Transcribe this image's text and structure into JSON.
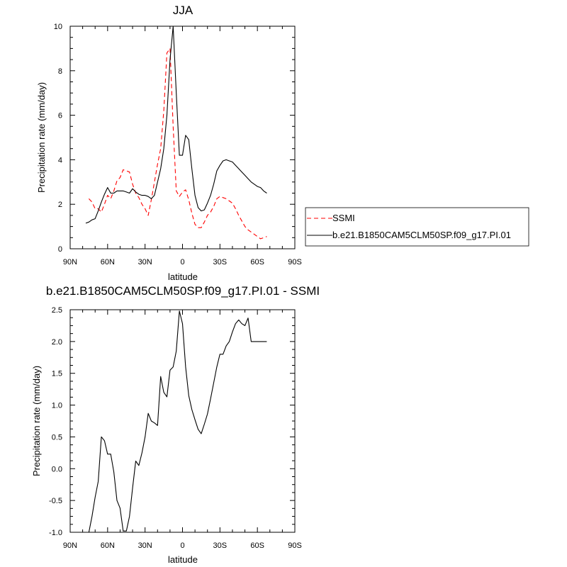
{
  "chart_data": [
    {
      "type": "line",
      "title": "JJA",
      "xlabel": "latitude",
      "ylabel": "Precipitation rate (mm/day)",
      "xlim": [
        90,
        -90
      ],
      "ylim": [
        0,
        10
      ],
      "x_ticks": [
        90,
        60,
        30,
        0,
        -30,
        -60,
        -90
      ],
      "x_tick_labels": [
        "90N",
        "60N",
        "30N",
        "0",
        "30S",
        "60S",
        "90S"
      ],
      "y_ticks": [
        0,
        2,
        4,
        6,
        8,
        10
      ],
      "y_tick_labels": [
        "0",
        "2",
        "4",
        "6",
        "8",
        "10"
      ],
      "grid": false,
      "legend_position": "right",
      "series": [
        {
          "name": "SSMI",
          "color": "#ff0000",
          "dash": "dashed",
          "x": [
            75,
            72.5,
            70,
            67.5,
            65,
            62.5,
            60,
            57.5,
            55,
            52.5,
            50,
            47.5,
            45,
            42.5,
            40,
            37.5,
            35,
            32.5,
            30,
            27.5,
            25,
            22.5,
            20,
            17.5,
            15,
            12.5,
            10,
            7.5,
            5,
            2.5,
            0,
            -2.5,
            -5,
            -7.5,
            -10,
            -12.5,
            -15,
            -17.5,
            -20,
            -22.5,
            -25,
            -27.5,
            -30,
            -32.5,
            -35,
            -37.5,
            -40,
            -42.5,
            -45,
            -47.5,
            -50,
            -52.5,
            -55,
            -57.5,
            -60,
            -62.5,
            -65,
            -67.5
          ],
          "y": [
            2.25,
            2.1,
            1.8,
            1.8,
            1.65,
            2.0,
            2.4,
            2.25,
            2.6,
            3.05,
            3.2,
            3.55,
            3.5,
            3.45,
            2.9,
            2.5,
            2.3,
            2.0,
            1.8,
            1.5,
            2.2,
            3.0,
            3.8,
            4.5,
            6.2,
            8.8,
            9.0,
            5.5,
            2.6,
            2.35,
            2.55,
            2.65,
            2.2,
            1.6,
            1.1,
            0.95,
            0.95,
            1.2,
            1.5,
            1.65,
            1.9,
            2.25,
            2.35,
            2.3,
            2.25,
            2.15,
            2.05,
            1.8,
            1.5,
            1.25,
            1.0,
            0.85,
            0.75,
            0.65,
            0.55,
            0.45,
            0.5,
            0.55
          ]
        },
        {
          "name": "b.e21.B1850CAM5CLM50SP.f09_g17.PI.01",
          "color": "#000000",
          "dash": "solid",
          "x": [
            77.5,
            75,
            72.5,
            70,
            67.5,
            65,
            62.5,
            60,
            57.5,
            55,
            52.5,
            50,
            47.5,
            45,
            42.5,
            40,
            37.5,
            35,
            32.5,
            30,
            27.5,
            25,
            22.5,
            20,
            17.5,
            15,
            12.5,
            10,
            7.5,
            5,
            2.5,
            0,
            -2.5,
            -5,
            -7.5,
            -10,
            -12.5,
            -15,
            -17.5,
            -20,
            -22.5,
            -25,
            -27.5,
            -30,
            -32.5,
            -35,
            -37.5,
            -40,
            -42.5,
            -45,
            -47.5,
            -50,
            -52.5,
            -55,
            -57.5,
            -60,
            -62.5,
            -65,
            -67.5
          ],
          "y": [
            1.15,
            1.2,
            1.3,
            1.35,
            1.7,
            2.1,
            2.45,
            2.75,
            2.5,
            2.5,
            2.6,
            2.6,
            2.6,
            2.55,
            2.5,
            2.7,
            2.55,
            2.45,
            2.4,
            2.4,
            2.35,
            2.25,
            2.4,
            3.0,
            3.6,
            4.5,
            6.0,
            8.5,
            10.0,
            7.0,
            4.2,
            4.2,
            5.1,
            4.9,
            3.6,
            2.4,
            1.85,
            1.7,
            1.75,
            2.05,
            2.4,
            2.9,
            3.5,
            3.75,
            3.95,
            4.0,
            3.95,
            3.9,
            3.75,
            3.6,
            3.45,
            3.3,
            3.15,
            3.0,
            2.9,
            2.8,
            2.75,
            2.6,
            2.5
          ]
        }
      ]
    },
    {
      "type": "line",
      "title": "b.e21.B1850CAM5CLM50SP.f09_g17.PI.01 - SSMI",
      "xlabel": "latitude",
      "ylabel": "Precipitation rate (mm/day)",
      "xlim": [
        90,
        -90
      ],
      "ylim": [
        -1.0,
        2.5
      ],
      "x_ticks": [
        90,
        60,
        30,
        0,
        -30,
        -60,
        -90
      ],
      "x_tick_labels": [
        "90N",
        "60N",
        "30N",
        "0",
        "30S",
        "60S",
        "90S"
      ],
      "y_ticks": [
        -1.0,
        -0.5,
        0.0,
        0.5,
        1.0,
        1.5,
        2.0,
        2.5
      ],
      "y_tick_labels": [
        "-1.0",
        "-0.5",
        "0.0",
        "0.5",
        "1.0",
        "1.5",
        "2.0",
        "2.5"
      ],
      "grid": false,
      "series": [
        {
          "color": "#000000",
          "dash": "solid",
          "x": [
            75,
            72.5,
            70,
            67.5,
            65,
            62.5,
            60,
            57.5,
            55,
            52.5,
            50,
            47.5,
            45,
            42.5,
            40,
            37.5,
            35,
            32.5,
            30,
            27.5,
            25,
            22.5,
            20,
            17.5,
            15,
            12.5,
            10,
            7.5,
            5,
            2.5,
            0,
            -2.5,
            -5,
            -7.5,
            -10,
            -12.5,
            -15,
            -17.5,
            -20,
            -22.5,
            -25,
            -27.5,
            -30,
            -32.5,
            -35,
            -37.5,
            -40,
            -42.5,
            -45,
            -47.5,
            -50,
            -52.5,
            -55,
            -57.5,
            -60,
            -62.5,
            -65,
            -67.5
          ],
          "y": [
            -1.0,
            -0.75,
            -0.45,
            -0.2,
            0.5,
            0.44,
            0.23,
            0.23,
            -0.05,
            -0.5,
            -0.62,
            -0.98,
            -0.98,
            -0.75,
            -0.3,
            0.12,
            0.05,
            0.25,
            0.5,
            0.87,
            0.75,
            0.72,
            0.68,
            1.45,
            1.2,
            1.13,
            1.55,
            1.6,
            1.85,
            2.48,
            2.28,
            1.6,
            1.15,
            0.93,
            0.77,
            0.62,
            0.55,
            0.7,
            0.86,
            1.1,
            1.35,
            1.6,
            1.8,
            1.8,
            1.93,
            2.0,
            2.15,
            2.28,
            2.34,
            2.28,
            2.25,
            2.37,
            2.0,
            2.0,
            2.0,
            2.0,
            2.0,
            2.0
          ]
        }
      ]
    }
  ]
}
